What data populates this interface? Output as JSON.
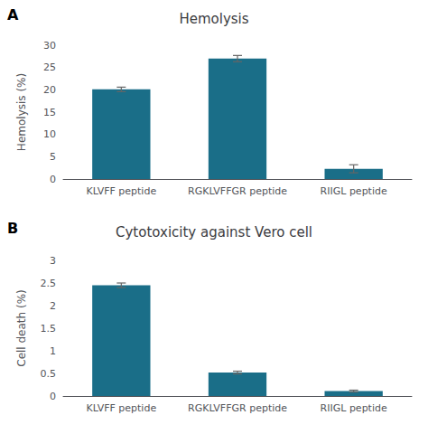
{
  "chart_data": [
    {
      "type": "bar",
      "title": "Hemolysis",
      "annotations": [
        "A"
      ],
      "categories": [
        "KLVFF peptide",
        "RGKLVFFGR peptide",
        "RIIGL peptide"
      ],
      "values": [
        20.1,
        27.0,
        2.3
      ],
      "errors": [
        0.5,
        0.7,
        0.9
      ],
      "ylabel": "Hemolysis (%)",
      "color": "#1a6e88",
      "ylim": [
        0,
        30
      ],
      "yticks": [
        0,
        5,
        10,
        15,
        20,
        25,
        30
      ],
      "grid": false
    },
    {
      "type": "bar",
      "title": "Cytotoxicity against Vero cell",
      "annotations": [
        "B"
      ],
      "categories": [
        "KLVFF peptide",
        "RGKLVFFGR peptide",
        "RIIGL peptide"
      ],
      "values": [
        2.45,
        0.52,
        0.11
      ],
      "errors": [
        0.05,
        0.03,
        0.02
      ],
      "ylabel": "Cell death (%)",
      "color": "#1a6e88",
      "ylim": [
        0,
        3
      ],
      "yticks": [
        0,
        0.5,
        1,
        1.5,
        2,
        2.5,
        3
      ],
      "grid": false
    }
  ]
}
